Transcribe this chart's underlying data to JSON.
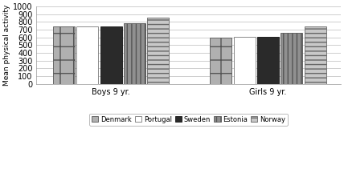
{
  "categories": [
    "Boys 9 yr.",
    "Girls 9 yr."
  ],
  "countries": [
    "Denmark",
    "Portugal",
    "Sweden",
    "Estonia",
    "Norway"
  ],
  "values": {
    "Boys 9 yr.": [
      740,
      745,
      745,
      780,
      860
    ],
    "Girls 9 yr.": [
      595,
      610,
      610,
      655,
      740
    ]
  },
  "bar_colors": [
    "#b0b0b0",
    "#ffffff",
    "#2a2a2a",
    "#909090",
    "#c8c8c8"
  ],
  "bar_hatches": [
    "+",
    "",
    "",
    "|||",
    "---"
  ],
  "bar_edgecolors": [
    "#555555",
    "#777777",
    "#111111",
    "#555555",
    "#666666"
  ],
  "ylabel": "Mean physical activity",
  "ylim": [
    0,
    1000
  ],
  "yticks": [
    0,
    100,
    200,
    300,
    400,
    500,
    600,
    700,
    800,
    900,
    1000
  ],
  "legend_labels": [
    "Denmark",
    "Portugal",
    "Sweden",
    "Estonia",
    "Norway"
  ],
  "background_color": "#ffffff",
  "bar_width": 0.12,
  "group_centers": [
    0.38,
    1.18
  ]
}
